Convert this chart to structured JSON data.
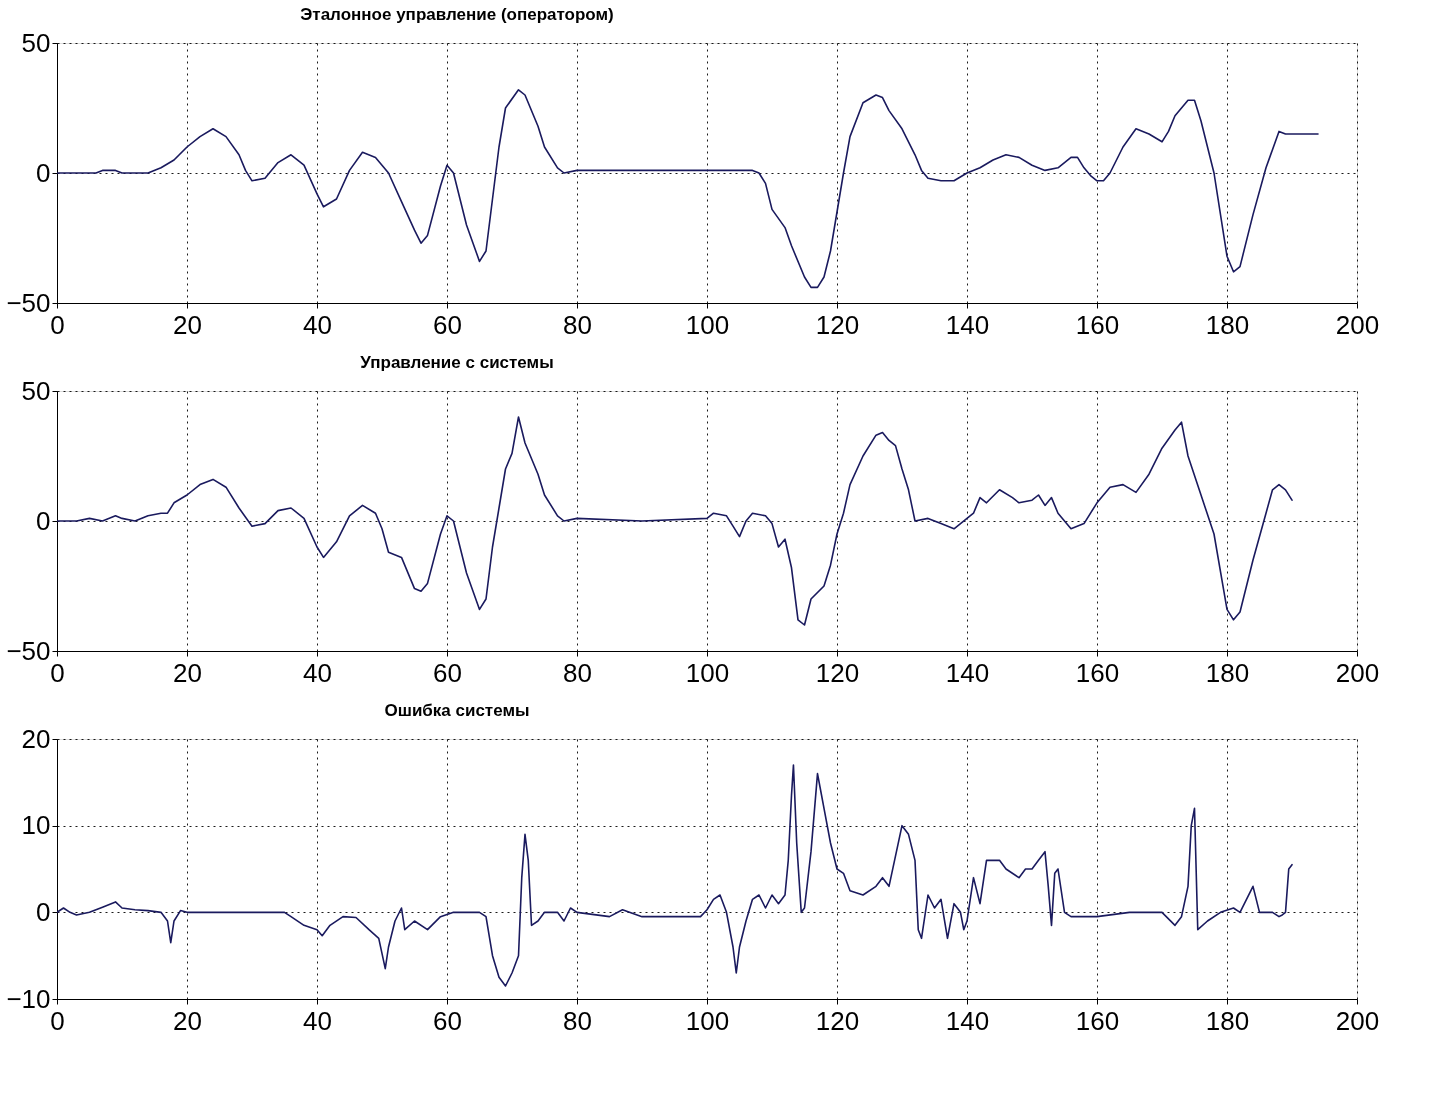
{
  "chart_data": [
    {
      "type": "line",
      "title": "Эталонное управление (оператором)",
      "xlim": [
        0,
        200
      ],
      "ylim": [
        -50,
        50
      ],
      "xticks": [
        0,
        20,
        40,
        60,
        80,
        100,
        120,
        140,
        160,
        180,
        200
      ],
      "yticks": [
        -50,
        0,
        50
      ],
      "grid": true,
      "x": [
        0,
        6,
        7,
        9,
        10,
        14,
        16,
        18,
        20,
        22,
        24,
        26,
        28,
        29,
        30,
        32,
        34,
        36,
        38,
        40,
        41,
        43,
        45,
        47,
        49,
        51,
        53,
        55,
        56,
        57,
        59,
        60,
        61,
        63,
        65,
        66,
        67,
        68,
        69,
        71,
        72,
        74,
        75,
        77,
        78,
        80,
        85,
        90,
        100,
        105,
        107,
        108,
        109,
        110,
        112,
        113,
        115,
        116,
        117,
        118,
        119,
        120,
        121,
        122,
        124,
        126,
        127,
        128,
        130,
        132,
        133,
        134,
        136,
        138,
        140,
        142,
        144,
        146,
        148,
        150,
        152,
        154,
        156,
        157,
        158,
        159,
        160,
        161,
        162,
        164,
        166,
        168,
        170,
        171,
        172,
        174,
        175,
        176,
        178,
        180,
        181,
        182,
        184,
        186,
        188,
        189,
        192,
        194
      ],
      "series": [
        {
          "color": "#1a1a5e",
          "values": [
            0,
            0,
            1,
            1,
            0,
            0,
            2,
            5,
            10,
            14,
            17,
            14,
            7,
            1,
            -3,
            -2,
            4,
            7,
            3,
            -8,
            -13,
            -10,
            1,
            8,
            6,
            0,
            -11,
            -22,
            -27,
            -24,
            -5,
            3,
            0,
            -20,
            -34,
            -30,
            -10,
            10,
            25,
            32,
            30,
            18,
            10,
            2,
            0,
            1,
            1,
            1,
            1,
            1,
            1,
            0,
            -4,
            -14,
            -21,
            -28,
            -40,
            -44,
            -44,
            -40,
            -30,
            -15,
            0,
            14,
            27,
            30,
            29,
            24,
            17,
            7,
            1,
            -2,
            -3,
            -3,
            0,
            2,
            5,
            7,
            6,
            3,
            1,
            2,
            6,
            6,
            2,
            -1,
            -3,
            -3,
            0,
            10,
            17,
            15,
            12,
            16,
            22,
            28,
            28,
            20,
            0,
            -32,
            -38,
            -36,
            -16,
            2,
            16,
            15,
            15,
            15
          ]
        }
      ]
    },
    {
      "type": "line",
      "title": "Управление с системы",
      "xlim": [
        0,
        200
      ],
      "ylim": [
        -50,
        50
      ],
      "xticks": [
        0,
        20,
        40,
        60,
        80,
        100,
        120,
        140,
        160,
        180,
        200
      ],
      "yticks": [
        -50,
        0,
        50
      ],
      "grid": true,
      "x": [
        0,
        3,
        5,
        7,
        9,
        10,
        12,
        14,
        16,
        17,
        18,
        20,
        22,
        24,
        26,
        28,
        30,
        32,
        34,
        36,
        38,
        40,
        41,
        43,
        45,
        47,
        49,
        50,
        51,
        53,
        55,
        56,
        57,
        59,
        60,
        61,
        63,
        65,
        66,
        67,
        68,
        69,
        70,
        71,
        72,
        74,
        75,
        77,
        78,
        80,
        90,
        100,
        101,
        103,
        104,
        105,
        106,
        107,
        109,
        110,
        111,
        112,
        113,
        114,
        115,
        116,
        118,
        119,
        120,
        121,
        122,
        124,
        126,
        127,
        128,
        129,
        130,
        131,
        132,
        134,
        136,
        138,
        139,
        140,
        141,
        142,
        143,
        145,
        147,
        148,
        150,
        151,
        152,
        153,
        154,
        156,
        158,
        160,
        162,
        164,
        166,
        168,
        170,
        172,
        173,
        174,
        176,
        178,
        180,
        181,
        182,
        184,
        186,
        187,
        188,
        189,
        190
      ],
      "series": [
        {
          "color": "#1a1a5e",
          "values": [
            0,
            0,
            1,
            0,
            2,
            1,
            0,
            2,
            3,
            3,
            7,
            10,
            14,
            16,
            13,
            5,
            -2,
            -1,
            4,
            5,
            1,
            -10,
            -14,
            -8,
            2,
            6,
            3,
            -3,
            -12,
            -14,
            -26,
            -27,
            -24,
            -5,
            2,
            0,
            -20,
            -34,
            -30,
            -10,
            5,
            20,
            26,
            40,
            30,
            18,
            10,
            2,
            0,
            1,
            0,
            1,
            3,
            2,
            -2,
            -6,
            0,
            3,
            2,
            -1,
            -10,
            -7,
            -18,
            -38,
            -40,
            -30,
            -25,
            -17,
            -5,
            3,
            14,
            25,
            33,
            34,
            31,
            29,
            20,
            12,
            0,
            1,
            -1,
            -3,
            -1,
            1,
            3,
            9,
            7,
            12,
            9,
            7,
            8,
            10,
            6,
            9,
            3,
            -3,
            -1,
            7,
            13,
            14,
            11,
            18,
            28,
            35,
            38,
            25,
            10,
            -5,
            -34,
            -38,
            -35,
            -15,
            3,
            12,
            14,
            12,
            8
          ]
        }
      ]
    },
    {
      "type": "line",
      "title": "Ошибка системы",
      "xlim": [
        0,
        200
      ],
      "ylim": [
        -10,
        20
      ],
      "xticks": [
        0,
        20,
        40,
        60,
        80,
        100,
        120,
        140,
        160,
        180,
        200
      ],
      "yticks": [
        -10,
        0,
        10,
        20
      ],
      "grid": true,
      "x": [
        0,
        1,
        2,
        3,
        5,
        7,
        9,
        10,
        12,
        14,
        16,
        17,
        17.5,
        18,
        19,
        20,
        30,
        35,
        36,
        38,
        40,
        40.8,
        42,
        44,
        46,
        48,
        49.5,
        50.5,
        51,
        52,
        53,
        53.5,
        55,
        57,
        59,
        61,
        62,
        65,
        66,
        67,
        68,
        69,
        70,
        71,
        71.5,
        72,
        72.5,
        73,
        74,
        75,
        77,
        78,
        79,
        80,
        85,
        87,
        90,
        95,
        99,
        100,
        101,
        102,
        103,
        104,
        104.5,
        105,
        106,
        107,
        108,
        109,
        110,
        111,
        112,
        112.5,
        113,
        113.3,
        113.8,
        114.5,
        115,
        116,
        117,
        117.5,
        118,
        119,
        120,
        121,
        122,
        124,
        126,
        127,
        128,
        130,
        131,
        132,
        132.5,
        133,
        134,
        135,
        136,
        137,
        138,
        139,
        139.5,
        140,
        141,
        142,
        143,
        145,
        146,
        148,
        149,
        150,
        151,
        152,
        152.5,
        153,
        153.5,
        154,
        155,
        156,
        160,
        165,
        170,
        172,
        173,
        174,
        174.5,
        175,
        175.5,
        177,
        179,
        181,
        182,
        183,
        184,
        185,
        187,
        188,
        188.5,
        189,
        189.5,
        190
      ],
      "series": [
        {
          "color": "#1a1a5e",
          "values": [
            0,
            0.5,
            0,
            -0.3,
            0,
            0.6,
            1.2,
            0.5,
            0.3,
            0.2,
            0,
            -1,
            -3.5,
            -1,
            0.2,
            0,
            0,
            0,
            -0.5,
            -1.5,
            -2,
            -2.7,
            -1.5,
            -0.5,
            -0.6,
            -2,
            -3,
            -6.5,
            -4,
            -1,
            0.5,
            -2,
            -1,
            -2,
            -0.5,
            0,
            0,
            0,
            -0.5,
            -5,
            -7.5,
            -8.5,
            -7,
            -5,
            4,
            9,
            6,
            -1.5,
            -1,
            0,
            0,
            -1,
            0.5,
            0,
            -0.5,
            0.3,
            -0.5,
            -0.5,
            -0.5,
            0.3,
            1.5,
            2,
            0,
            -4,
            -7,
            -4,
            -1,
            1.5,
            2,
            0.5,
            2,
            1,
            2,
            6,
            13.5,
            17,
            8,
            0,
            0.5,
            7,
            16,
            14,
            12,
            8,
            5,
            4.5,
            2.5,
            2,
            3,
            4,
            3,
            10,
            9,
            6,
            -2,
            -3,
            2,
            0.5,
            1.5,
            -3,
            1,
            0,
            -2,
            -1,
            4,
            1,
            6,
            6,
            5,
            4,
            5,
            5,
            6,
            7,
            3,
            -1.5,
            4.5,
            5,
            0,
            -0.5,
            -0.5,
            0,
            0,
            -1.5,
            -0.5,
            3,
            10,
            12,
            -2,
            -1,
            0,
            0.5,
            0,
            1.5,
            3,
            0,
            0,
            -0.5,
            -0.3,
            0,
            5,
            5.5
          ]
        }
      ]
    }
  ]
}
